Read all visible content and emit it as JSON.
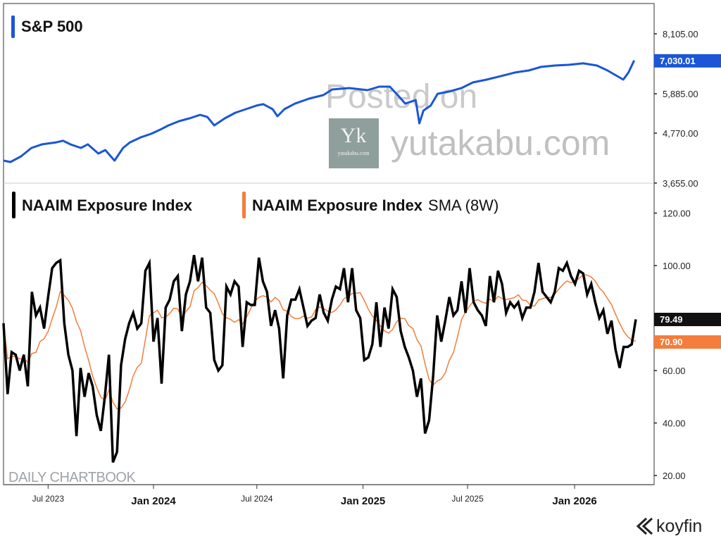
{
  "chart_data": [
    {
      "type": "line",
      "title": "S&P 500",
      "scale": "log",
      "series_color": "#1a56d6",
      "yticks": [
        8105,
        5885,
        4770,
        3655
      ],
      "ytick_labels": [
        "8,105.00",
        "5,885.00",
        "4,770.00",
        "3,655.00"
      ],
      "ylim": [
        3655,
        8105
      ],
      "last_value": 7030.01,
      "last_label": "7,030.01",
      "x_unit": "weeks since mid-Apr 2023",
      "points": [
        [
          0,
          4120
        ],
        [
          1.7,
          4089
        ],
        [
          4.3,
          4214
        ],
        [
          6.9,
          4408
        ],
        [
          9.5,
          4493
        ],
        [
          13,
          4541
        ],
        [
          14.7,
          4580
        ],
        [
          16.5,
          4493
        ],
        [
          19.1,
          4408
        ],
        [
          20.8,
          4493
        ],
        [
          23.4,
          4278
        ],
        [
          25.1,
          4358
        ],
        [
          27.4,
          4120
        ],
        [
          29.5,
          4408
        ],
        [
          31.2,
          4541
        ],
        [
          33.8,
          4663
        ],
        [
          36.4,
          4752
        ],
        [
          39,
          4877
        ],
        [
          40.7,
          4971
        ],
        [
          43.3,
          5086
        ],
        [
          45.9,
          5162
        ],
        [
          48.5,
          5261
        ],
        [
          50.3,
          5200
        ],
        [
          52,
          4971
        ],
        [
          54.6,
          5162
        ],
        [
          57.2,
          5320
        ],
        [
          59.8,
          5421
        ],
        [
          62.4,
          5525
        ],
        [
          64.1,
          5567
        ],
        [
          66.4,
          5421
        ],
        [
          67.6,
          5220
        ],
        [
          69.3,
          5421
        ],
        [
          71.9,
          5585
        ],
        [
          75.4,
          5736
        ],
        [
          78.9,
          5845
        ],
        [
          81.1,
          6022
        ],
        [
          85.3,
          6069
        ],
        [
          89.8,
          6000
        ],
        [
          92.7,
          6113
        ],
        [
          95.3,
          6113
        ],
        [
          97.6,
          5797
        ],
        [
          99.1,
          5585
        ],
        [
          101.7,
          5691
        ],
        [
          102.6,
          5027
        ],
        [
          103.6,
          5380
        ],
        [
          105.4,
          5525
        ],
        [
          107.1,
          5885
        ],
        [
          110,
          5957
        ],
        [
          113,
          6069
        ],
        [
          115.8,
          6254
        ],
        [
          119.2,
          6349
        ],
        [
          122.7,
          6467
        ],
        [
          126.2,
          6593
        ],
        [
          129.6,
          6666
        ],
        [
          132.6,
          6792
        ],
        [
          136,
          6843
        ],
        [
          139.5,
          6870
        ],
        [
          143,
          6924
        ],
        [
          146.4,
          6843
        ],
        [
          149,
          6666
        ],
        [
          152.9,
          6349
        ],
        [
          154.2,
          6593
        ],
        [
          155.6,
          7030.01
        ]
      ]
    },
    {
      "type": "line",
      "title": "NAAIM Exposure Index",
      "scale": "linear",
      "yticks": [
        120,
        100,
        60,
        40,
        20
      ],
      "ytick_labels": [
        "120.00",
        "100.00",
        "60.00",
        "40.00",
        "20.00"
      ],
      "ylim": [
        20,
        120
      ],
      "series": [
        {
          "name": "NAAIM Exposure Index",
          "color": "#000000",
          "last_label": "79.49",
          "values": [
            78,
            51,
            67,
            66,
            60,
            66,
            54,
            90,
            81,
            84,
            76,
            88,
            99,
            101,
            102,
            78,
            66,
            60,
            35,
            61,
            50,
            59,
            54,
            43,
            37,
            50,
            66,
            25,
            29,
            62,
            72,
            78,
            82,
            76,
            78,
            98,
            101,
            71,
            80,
            55,
            84,
            87,
            94,
            96,
            75,
            89,
            94,
            104,
            94,
            103,
            84,
            82,
            64,
            60,
            62,
            92,
            89,
            94,
            92,
            69,
            86,
            85,
            85,
            103,
            94,
            90,
            77,
            83,
            76,
            57,
            81,
            87,
            87,
            91,
            84,
            77,
            79,
            80,
            89,
            82,
            79,
            87,
            92,
            91,
            99,
            86,
            99,
            83,
            80,
            64,
            65,
            70,
            86,
            69,
            84,
            76,
            91,
            88,
            75,
            69,
            65,
            60,
            50,
            57,
            36,
            41,
            58,
            81,
            71,
            79,
            88,
            81,
            83,
            94,
            82,
            99,
            86,
            83,
            81,
            77,
            96,
            86,
            98,
            93,
            82,
            86,
            84,
            86,
            80,
            84,
            84,
            90,
            101,
            90,
            88,
            86,
            90,
            99,
            98,
            101,
            96,
            93,
            98,
            97,
            89,
            93,
            86,
            80,
            83,
            74,
            79,
            68,
            61,
            69,
            69,
            70,
            79.49
          ]
        },
        {
          "name": "NAAIM Exposure Index SMA (8W)",
          "color": "#f47c3c",
          "sma_window": 8,
          "last_label": "70.90"
        }
      ]
    }
  ],
  "x_axis": {
    "labels": [
      {
        "text": "Jul 2023",
        "week": 11,
        "major": false
      },
      {
        "text": "Jan 2024",
        "week": 37,
        "major": true
      },
      {
        "text": "Jul 2024",
        "week": 62.5,
        "major": false
      },
      {
        "text": "Jan 2025",
        "week": 88.7,
        "major": true
      },
      {
        "text": "Jul 2025",
        "week": 114.5,
        "major": false
      },
      {
        "text": "Jan 2026",
        "week": 140.9,
        "major": true
      }
    ]
  },
  "legend": {
    "sp500": "S&P 500",
    "naaim": "NAAIM Exposure Index",
    "sma_name": "NAAIM Exposure Index",
    "sma_suffix": "SMA (8W)"
  },
  "watermark": {
    "posted_on": "Posted on",
    "site": "yutakabu.com",
    "logo_letters": "Yk",
    "logo_site": "yutakabu.com"
  },
  "branding": {
    "chartbook": "DAILY CHARTBOOK",
    "koyfin": "koyfin"
  }
}
